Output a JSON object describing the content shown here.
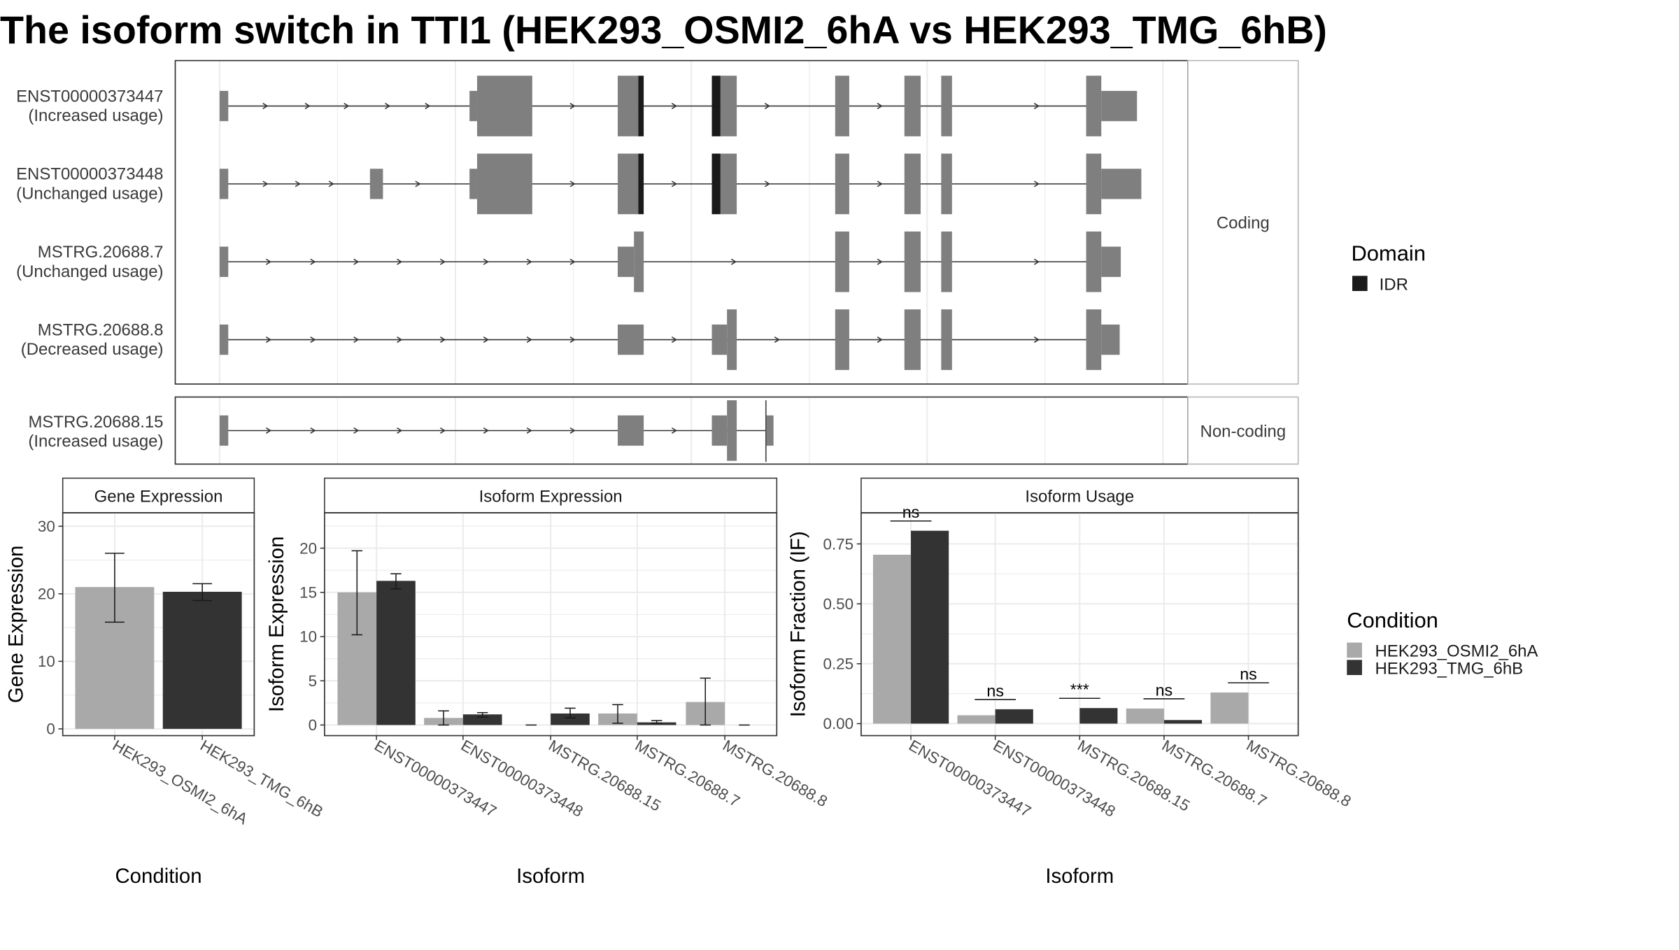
{
  "title": "The isoform switch in TTI1 (HEK293_OSMI2_6hA vs HEK293_TMG_6hB)",
  "colors": {
    "exon": "#7f7f7f",
    "idr": "#1a1a1a",
    "condA": "#a9a9a9",
    "condB": "#333333",
    "grid": "#ebebeb",
    "panel_border": "#333333",
    "strip_border": "#b3b3b3"
  },
  "structure": {
    "facets": [
      "Coding",
      "Non-coding"
    ],
    "transcripts": [
      {
        "id": "ENST00000373447",
        "usage": "(Increased usage)",
        "facet": "Coding"
      },
      {
        "id": "ENST00000373448",
        "usage": "(Unchanged usage)",
        "facet": "Coding"
      },
      {
        "id": "MSTRG.20688.7",
        "usage": "(Unchanged usage)",
        "facet": "Coding"
      },
      {
        "id": "MSTRG.20688.8",
        "usage": "(Decreased usage)",
        "facet": "Coding"
      },
      {
        "id": "MSTRG.20688.15",
        "usage": "(Increased usage)",
        "facet": "Non-coding"
      }
    ]
  },
  "legend_domain": {
    "title": "Domain",
    "items": [
      "IDR"
    ]
  },
  "legend_condition": {
    "title": "Condition",
    "items": [
      "HEK293_OSMI2_6hA",
      "HEK293_TMG_6hB"
    ]
  },
  "chart_data": [
    {
      "type": "bar",
      "title": "Gene Expression",
      "xlabel": "Condition",
      "ylabel": "Gene Expression",
      "categories": [
        "HEK293_OSMI2_6hA",
        "HEK293_TMG_6hB"
      ],
      "series": [
        {
          "name": "HEK293_OSMI2_6hA",
          "values": [
            21.0,
            null
          ]
        },
        {
          "name": "HEK293_TMG_6hB",
          "values": [
            null,
            20.3
          ]
        }
      ],
      "error_bars": [
        [
          15.8,
          26.0
        ],
        [
          19.0,
          21.5
        ]
      ],
      "ylim": [
        -1,
        32
      ],
      "yticks": [
        0,
        10,
        20,
        30
      ],
      "grid": true
    },
    {
      "type": "bar",
      "title": "Isoform Expression",
      "xlabel": "Isoform",
      "ylabel": "Isoform Expression",
      "categories": [
        "ENST00000373447",
        "ENST00000373448",
        "MSTRG.20688.15",
        "MSTRG.20688.7",
        "MSTRG.20688.8"
      ],
      "series": [
        {
          "name": "HEK293_OSMI2_6hA",
          "values": [
            15.0,
            0.8,
            0.0,
            1.3,
            2.6
          ]
        },
        {
          "name": "HEK293_TMG_6hB",
          "values": [
            16.3,
            1.2,
            1.3,
            0.3,
            0.0
          ]
        }
      ],
      "error_bars": {
        "HEK293_OSMI2_6hA": [
          [
            10.2,
            19.7
          ],
          [
            0.0,
            1.6
          ],
          [
            0.0,
            0.0
          ],
          [
            0.2,
            2.3
          ],
          [
            0.0,
            5.3
          ]
        ],
        "HEK293_TMG_6hB": [
          [
            15.4,
            17.1
          ],
          [
            0.9,
            1.4
          ],
          [
            0.8,
            1.9
          ],
          [
            0.2,
            0.5
          ],
          [
            0.0,
            0.0
          ]
        ]
      },
      "ylim": [
        -1.2,
        24
      ],
      "yticks": [
        0,
        5,
        10,
        15,
        20
      ],
      "grid": true
    },
    {
      "type": "bar",
      "title": "Isoform Usage",
      "xlabel": "Isoform",
      "ylabel": "Isoform Fraction (IF)",
      "categories": [
        "ENST00000373447",
        "ENST00000373448",
        "MSTRG.20688.15",
        "MSTRG.20688.7",
        "MSTRG.20688.8"
      ],
      "series": [
        {
          "name": "HEK293_OSMI2_6hA",
          "values": [
            0.705,
            0.035,
            0.0,
            0.063,
            0.13
          ]
        },
        {
          "name": "HEK293_TMG_6hB",
          "values": [
            0.805,
            0.06,
            0.065,
            0.015,
            0.0
          ]
        }
      ],
      "significance": [
        "ns",
        "ns",
        "***",
        "ns",
        "ns"
      ],
      "ylim": [
        -0.05,
        0.88
      ],
      "yticks": [
        0.0,
        0.25,
        0.5,
        0.75
      ],
      "ytick_labels": [
        "0.00",
        "0.25",
        "0.50",
        "0.75"
      ],
      "grid": true
    }
  ]
}
